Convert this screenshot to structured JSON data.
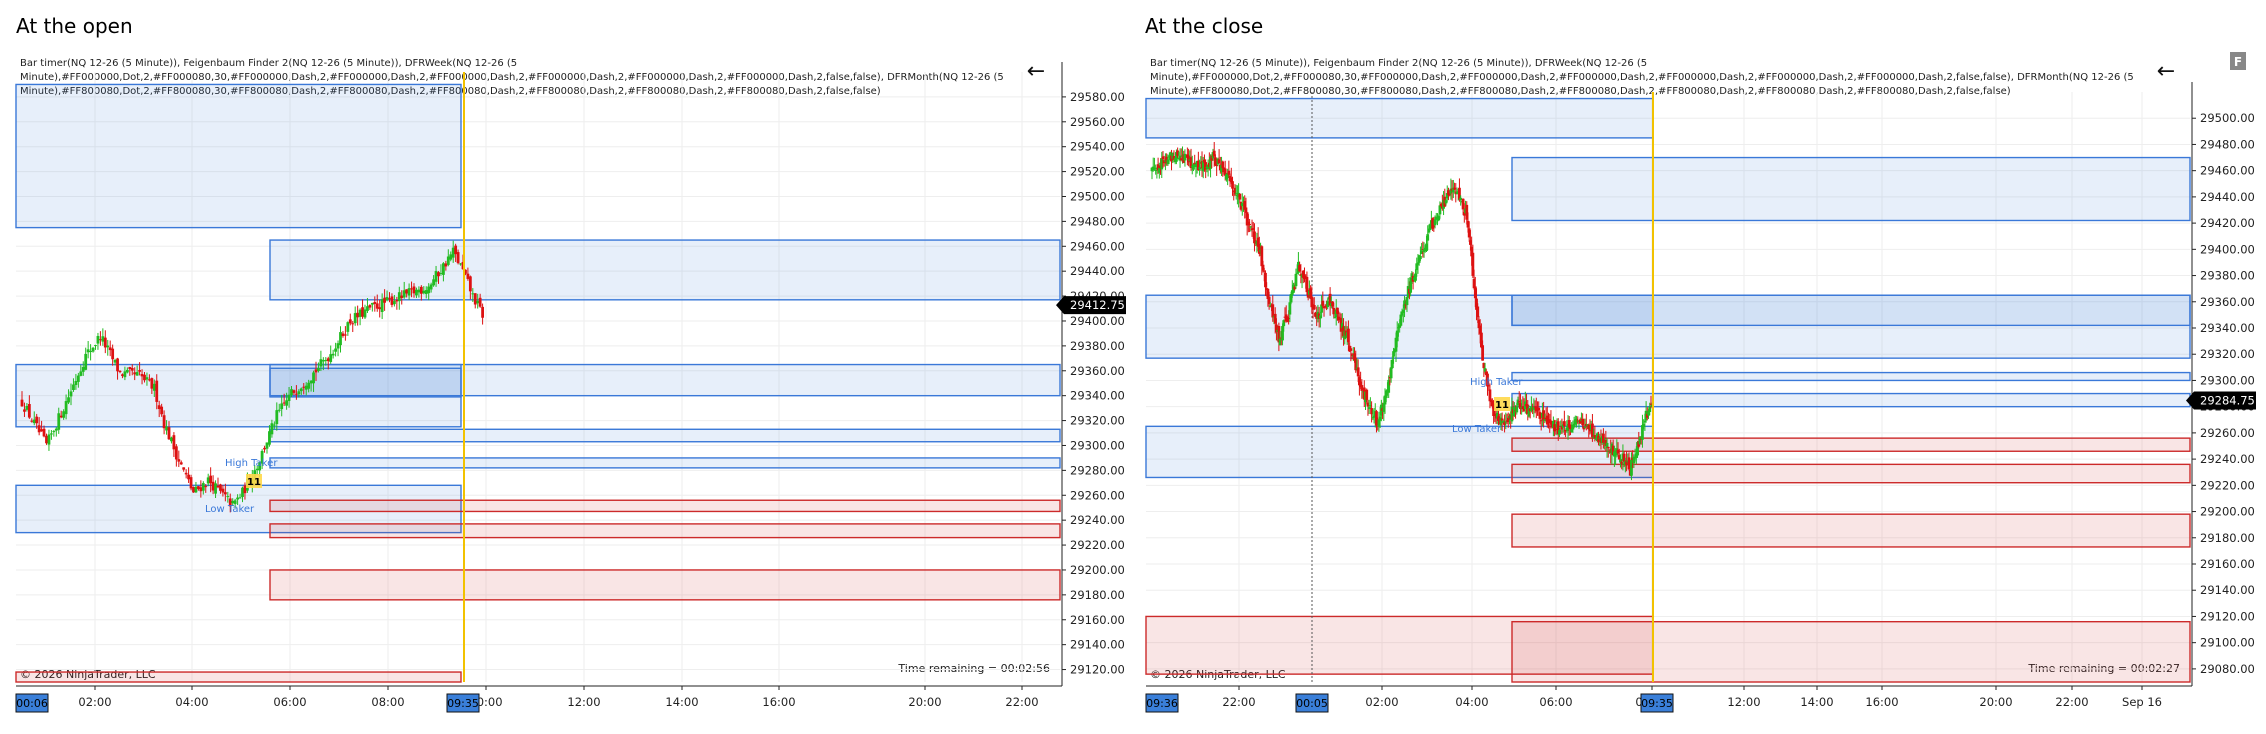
{
  "panels": [
    {
      "title": "At the open",
      "indicator_lines": [
        "Bar timer(NQ 12-26 (5 Minute)), Feigenbaum Finder 2(NQ 12-26 (5 Minute)), DFRWeek(NQ 12-26 (5",
        "Minute),#FF000000,Dot,2,#FF000080,30,#FF000000,Dash,2,#FF000000,Dash,2,#FF000000,Dash,2,#FF000000,Dash,2,#FF000000,Dash,2,#FF000000,Dash,2,false,false), DFRMonth(NQ 12-26 (5",
        "Minute),#FF800080,Dot,2,#FF800080,30,#FF800080,Dash,2,#FF800080,Dash,2,#FF800080,Dash,2,#FF800080,Dash,2,#FF800080,Dash,2,#FF800080,Dash,2,false,false)"
      ],
      "copyright": "© 2026 NinjaTrader, LLC",
      "time_remaining": "Time remaining = 00:02:56",
      "last_price": "29412.75",
      "y_ticks": [
        "29580.00",
        "29560.00",
        "29540.00",
        "29520.00",
        "29500.00",
        "29480.00",
        "29460.00",
        "29440.00",
        "29420.00",
        "29400.00",
        "29380.00",
        "29360.00",
        "29340.00",
        "29320.00",
        "29300.00",
        "29280.00",
        "29260.00",
        "29240.00",
        "29220.00",
        "29200.00",
        "29180.00",
        "29160.00",
        "29140.00",
        "29120.00"
      ],
      "x_ticks": [
        "02:00",
        "04:00",
        "06:00",
        "08:00",
        "10:00",
        "12:00",
        "14:00",
        "16:00",
        "20:00",
        "22:00"
      ],
      "x_badges": [
        "00:06",
        "09:35"
      ],
      "labels": {
        "high": "High Taker",
        "low": "Low Taker",
        "marker": "11"
      },
      "back_arrow": "←"
    },
    {
      "title": "At the close",
      "indicator_lines": [
        "Bar timer(NQ 12-26 (5 Minute)), Feigenbaum Finder 2(NQ 12-26 (5 Minute)), DFRWeek(NQ 12-26 (5",
        "Minute),#FF000000,Dot,2,#FF000080,30,#FF000000,Dash,2,#FF000000,Dash,2,#FF000000,Dash,2,#FF000000,Dash,2,#FF000000,Dash,2,#FF000000,Dash,2,false,false), DFRMonth(NQ 12-26 (5",
        "Minute),#FF800080,Dot,2,#FF800080,30,#FF800080,Dash,2,#FF800080,Dash,2,#FF800080,Dash,2,#FF800080,Dash,2,#FF800080,Dash,2,#FF800080,Dash,2,false,false)"
      ],
      "copyright": "© 2026 NinjaTrader, LLC",
      "time_remaining": "Time remaining = 00:02:27",
      "last_price": "29284.75",
      "y_ticks": [
        "29500.00",
        "29480.00",
        "29460.00",
        "29440.00",
        "29420.00",
        "29400.00",
        "29380.00",
        "29360.00",
        "29340.00",
        "29320.00",
        "29300.00",
        "29280.00",
        "29260.00",
        "29240.00",
        "29220.00",
        "29200.00",
        "29180.00",
        "29160.00",
        "29140.00",
        "29120.00",
        "29100.00",
        "29080.00"
      ],
      "x_ticks": [
        "22:00",
        "02:00",
        "04:00",
        "06:00",
        "08:00",
        "12:00",
        "14:00",
        "16:00",
        "20:00",
        "22:00",
        "Sep 16"
      ],
      "x_badges": [
        "09:36",
        "00:05",
        "09:35"
      ],
      "labels": {
        "high": "High Taker",
        "low": "Low Taker",
        "marker": "11"
      },
      "back_arrow": "←",
      "f_button": "F"
    }
  ],
  "colors": {
    "bull": "#22bb22",
    "bear": "#dd1111",
    "zone_blue": "#3a78d8",
    "zone_red": "#cc2a2a",
    "session_line": "#f2c200",
    "badge": "#3a7fd9"
  },
  "chart_data": [
    {
      "type": "candlestick",
      "title": "At the open",
      "instrument": "NQ 12-26 (5 Minute)",
      "ylim": [
        29110,
        29600
      ],
      "last_price": 29412.75,
      "close_path": [
        [
          0,
          29335
        ],
        [
          10,
          29300
        ],
        [
          18,
          29335
        ],
        [
          26,
          29372
        ],
        [
          32,
          29388
        ],
        [
          40,
          29358
        ],
        [
          48,
          29356
        ],
        [
          54,
          29346
        ],
        [
          58,
          29318
        ],
        [
          64,
          29288
        ],
        [
          70,
          29262
        ],
        [
          76,
          29272
        ],
        [
          82,
          29260
        ],
        [
          86,
          29252
        ],
        [
          90,
          29262
        ],
        [
          96,
          29284
        ],
        [
          104,
          29324
        ],
        [
          110,
          29342
        ],
        [
          118,
          29356
        ],
        [
          126,
          29374
        ],
        [
          134,
          29400
        ],
        [
          142,
          29410
        ],
        [
          150,
          29416
        ],
        [
          158,
          29422
        ],
        [
          166,
          29428
        ],
        [
          172,
          29444
        ],
        [
          176,
          29456
        ],
        [
          180,
          29440
        ],
        [
          184,
          29420
        ],
        [
          188,
          29405
        ]
      ],
      "sessions": [
        {
          "name": "Low Taker",
          "price": 29245
        },
        {
          "name": "High Taker",
          "price": 29273
        }
      ]
    },
    {
      "type": "candlestick",
      "title": "At the close",
      "instrument": "NQ 12-26 (5 Minute)",
      "ylim": [
        29070,
        29520
      ],
      "last_price": 29284.75,
      "close_path": [
        [
          0,
          29462
        ],
        [
          10,
          29466
        ],
        [
          20,
          29474
        ],
        [
          30,
          29468
        ],
        [
          40,
          29462
        ],
        [
          50,
          29470
        ],
        [
          60,
          29458
        ],
        [
          70,
          29442
        ],
        [
          80,
          29418
        ],
        [
          90,
          29392
        ],
        [
          96,
          29360
        ],
        [
          104,
          29330
        ],
        [
          112,
          29352
        ],
        [
          120,
          29388
        ],
        [
          128,
          29368
        ],
        [
          136,
          29348
        ],
        [
          144,
          29362
        ],
        [
          152,
          29348
        ],
        [
          160,
          29332
        ],
        [
          168,
          29305
        ],
        [
          176,
          29284
        ],
        [
          184,
          29270
        ],
        [
          190,
          29284
        ],
        [
          198,
          29320
        ],
        [
          206,
          29356
        ],
        [
          214,
          29380
        ],
        [
          222,
          29400
        ],
        [
          230,
          29420
        ],
        [
          238,
          29432
        ],
        [
          246,
          29448
        ],
        [
          252,
          29440
        ],
        [
          258,
          29424
        ],
        [
          262,
          29390
        ],
        [
          268,
          29340
        ],
        [
          274,
          29300
        ],
        [
          280,
          29275
        ],
        [
          288,
          29268
        ],
        [
          300,
          29282
        ],
        [
          312,
          29276
        ],
        [
          324,
          29268
        ],
        [
          336,
          29262
        ],
        [
          348,
          29270
        ],
        [
          360,
          29262
        ],
        [
          372,
          29252
        ],
        [
          384,
          29242
        ],
        [
          392,
          29232
        ],
        [
          398,
          29248
        ],
        [
          404,
          29270
        ],
        [
          410,
          29284
        ]
      ]
    }
  ]
}
